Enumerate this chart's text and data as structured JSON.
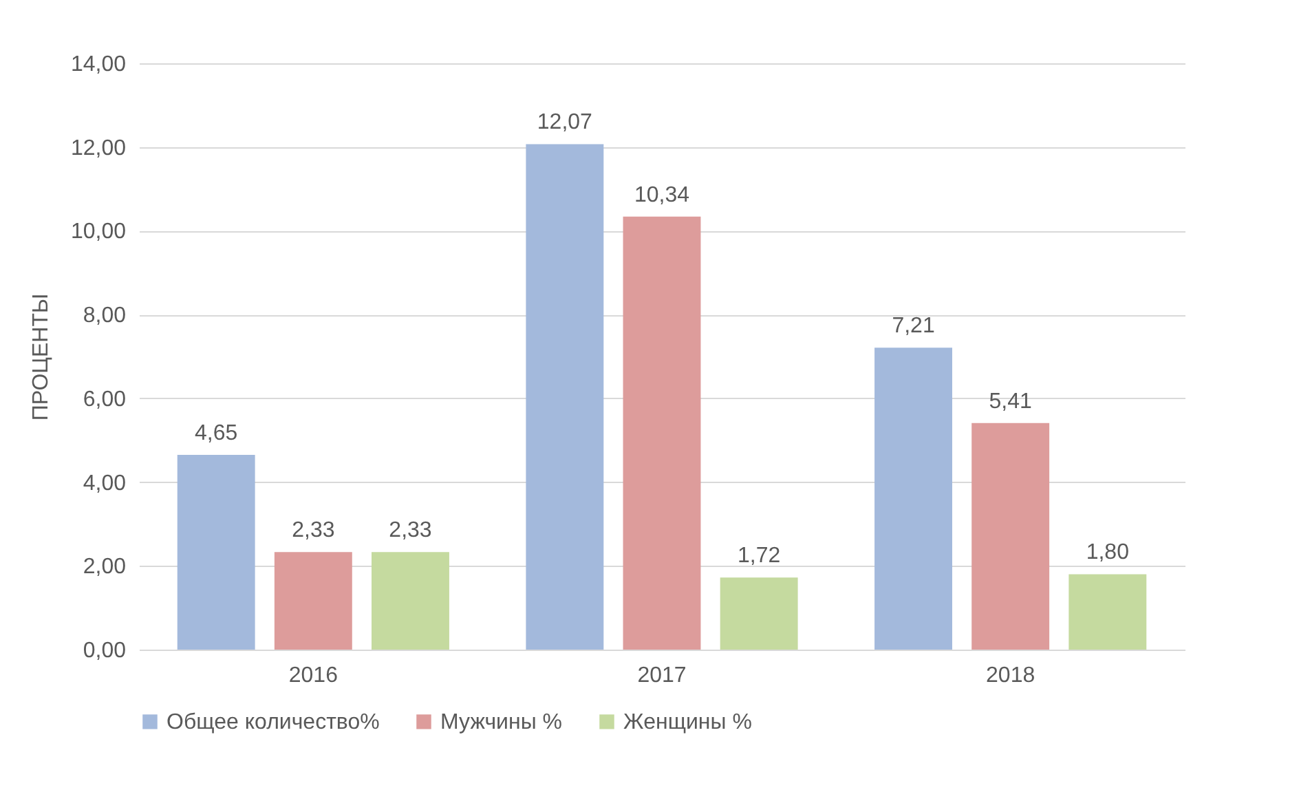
{
  "chart_data": {
    "type": "bar",
    "ylabel": "ПРОЦЕНТЫ",
    "categories": [
      "2016",
      "2017",
      "2018"
    ],
    "series": [
      {
        "name": "Общее количество%",
        "color": "#a3b9dc",
        "values": [
          4.65,
          12.07,
          7.21
        ],
        "value_labels": [
          "4,65",
          "12,07",
          "7,21"
        ]
      },
      {
        "name": "Мужчины %",
        "color": "#dd9c9b",
        "values": [
          2.33,
          10.34,
          5.41
        ],
        "value_labels": [
          "2,33",
          "10,34",
          "5,41"
        ]
      },
      {
        "name": "Женщины %",
        "color": "#c5da9f",
        "values": [
          2.33,
          1.72,
          1.8
        ],
        "value_labels": [
          "2,33",
          "1,72",
          "1,80"
        ]
      }
    ],
    "ylim": [
      0,
      14
    ],
    "yticks": [
      {
        "value": 0,
        "label": "0,00"
      },
      {
        "value": 2,
        "label": "2,00"
      },
      {
        "value": 4,
        "label": "4,00"
      },
      {
        "value": 6,
        "label": "6,00"
      },
      {
        "value": 8,
        "label": "8,00"
      },
      {
        "value": 10,
        "label": "10,00"
      },
      {
        "value": 12,
        "label": "12,00"
      },
      {
        "value": 14,
        "label": "14,00"
      }
    ],
    "grid": "y",
    "legend": "bottom"
  }
}
